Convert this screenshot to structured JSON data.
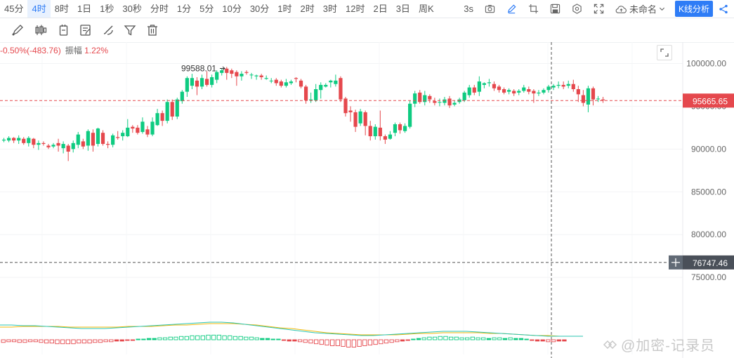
{
  "intervals": [
    {
      "label": "45分",
      "active": false
    },
    {
      "label": "4时",
      "active": true
    },
    {
      "label": "8时",
      "active": false
    },
    {
      "label": "1日",
      "active": false
    },
    {
      "label": "1秒",
      "active": false
    },
    {
      "label": "30秒",
      "active": false
    },
    {
      "label": "分时",
      "active": false
    },
    {
      "label": "1分",
      "active": false
    },
    {
      "label": "5分",
      "active": false
    },
    {
      "label": "10分",
      "active": false
    },
    {
      "label": "30分",
      "active": false
    },
    {
      "label": "1时",
      "active": false
    },
    {
      "label": "2时",
      "active": false
    },
    {
      "label": "3时",
      "active": false
    },
    {
      "label": "12时",
      "active": false
    },
    {
      "label": "2日",
      "active": false
    },
    {
      "label": "3日",
      "active": false
    },
    {
      "label": "周K",
      "active": false
    }
  ],
  "toolbar": {
    "refresh_label": "3s",
    "layout_name": "未命名",
    "analysis_button": "K线分析",
    "icons": [
      "camera-icon",
      "pen-icon",
      "crop-icon",
      "save-icon",
      "settings-icon",
      "fullscreen-icon",
      "cloud-icon",
      "chevron-down-icon",
      "share-icon"
    ]
  },
  "draw_tools": [
    "line-draw-icon",
    "candle-icon",
    "ruler-icon",
    "note-icon",
    "brush-icon",
    "filter-icon",
    "trash-icon"
  ],
  "legend": {
    "change": "-0.50%(-483.76)",
    "amplitude_label": "振幅",
    "amplitude_value": "1.22%"
  },
  "chart_data": {
    "type": "candlestick",
    "y_ticks": [
      "100000.00",
      "95000.00",
      "90000.00",
      "85000.00",
      "80000.00",
      "75000.00"
    ],
    "ylim": [
      70500,
      102500
    ],
    "current_price": "95665.65",
    "current_price_value": 95665.65,
    "crosshair_price": "76747.46",
    "crosshair_price_value": 76747.46,
    "high_marker": "99588.01",
    "high_marker_value": 99588.01,
    "colors": {
      "up": "#0ecb81",
      "down": "#e5484d",
      "grid": "#f2f3f5",
      "axis_text": "#666666",
      "yellow": "#f0b90b",
      "teal": "#2bc4b2"
    },
    "candles": [
      [
        91000,
        91100,
        91300,
        90800
      ],
      [
        91000,
        91300,
        91500,
        90800
      ],
      [
        91300,
        91000,
        91400,
        90700
      ],
      [
        91000,
        91300,
        91600,
        90600
      ],
      [
        91200,
        90700,
        91400,
        90500
      ],
      [
        90700,
        91300,
        91500,
        90300
      ],
      [
        91200,
        90500,
        91300,
        90100
      ],
      [
        90500,
        90700,
        91000,
        89900
      ],
      [
        90700,
        90600,
        90900,
        90400
      ],
      [
        90400,
        90200,
        90600,
        90000
      ],
      [
        90300,
        90500,
        90700,
        90100
      ],
      [
        90700,
        90400,
        91200,
        89700
      ],
      [
        90100,
        90600,
        90900,
        89500
      ],
      [
        90400,
        89700,
        90600,
        88600
      ],
      [
        90000,
        90700,
        91000,
        89600
      ],
      [
        90500,
        91700,
        92000,
        90100
      ],
      [
        90900,
        90300,
        91200,
        90000
      ],
      [
        90400,
        92100,
        92300,
        89800
      ],
      [
        91900,
        90400,
        92300,
        89700
      ],
      [
        90600,
        92400,
        92500,
        90300
      ],
      [
        91900,
        90600,
        92200,
        90400
      ],
      [
        90600,
        90500,
        90900,
        90100
      ],
      [
        90500,
        91600,
        91800,
        90200
      ],
      [
        91400,
        91300,
        92100,
        91100
      ],
      [
        91500,
        91900,
        92200,
        91000
      ],
      [
        91500,
        92500,
        93500,
        91400
      ],
      [
        92600,
        92400,
        92800,
        91900
      ],
      [
        92500,
        91900,
        92800,
        91700
      ],
      [
        92000,
        93200,
        93700,
        91800
      ],
      [
        92300,
        91700,
        92700,
        91400
      ],
      [
        91700,
        93200,
        93700,
        91500
      ],
      [
        92800,
        94200,
        94700,
        92700
      ],
      [
        94200,
        93300,
        94500,
        92700
      ],
      [
        93300,
        95500,
        95800,
        93000
      ],
      [
        95500,
        93800,
        95800,
        93400
      ],
      [
        93800,
        95800,
        96000,
        93500
      ],
      [
        95600,
        96700,
        96900,
        95300
      ],
      [
        96700,
        98300,
        98500,
        96100
      ],
      [
        97400,
        98300,
        98800,
        97000
      ],
      [
        98000,
        97300,
        98400,
        96300
      ],
      [
        97300,
        98300,
        98700,
        97000
      ],
      [
        98200,
        97500,
        99100,
        97300
      ],
      [
        97500,
        98400,
        98700,
        97200
      ],
      [
        98100,
        99000,
        99200,
        97700
      ],
      [
        98900,
        99200,
        99400,
        98600
      ],
      [
        99400,
        98900,
        99600,
        98100
      ],
      [
        99200,
        98800,
        99400,
        98300
      ],
      [
        99000,
        98500,
        99200,
        97400
      ],
      [
        98500,
        98800,
        99100,
        98000
      ],
      [
        99000,
        98900,
        99200,
        98700
      ],
      [
        98700,
        98700,
        98900,
        98200
      ],
      [
        98500,
        98600,
        98700,
        98100
      ],
      [
        98600,
        98400,
        98800,
        98100
      ],
      [
        98200,
        98300,
        98600,
        98100
      ],
      [
        98000,
        98000,
        98300,
        97700
      ],
      [
        98100,
        97700,
        98300,
        97400
      ],
      [
        97900,
        97400,
        98100,
        97200
      ],
      [
        97400,
        97800,
        98200,
        97200
      ],
      [
        97700,
        97900,
        98100,
        97500
      ],
      [
        98300,
        98200,
        98400,
        97800
      ],
      [
        98000,
        97300,
        98200,
        97100
      ],
      [
        97300,
        95700,
        97500,
        95300
      ],
      [
        95700,
        95800,
        96600,
        95400
      ],
      [
        95700,
        97000,
        97600,
        95500
      ],
      [
        96900,
        97500,
        97800,
        95900
      ],
      [
        97300,
        97500,
        97700,
        97200
      ],
      [
        97800,
        98000,
        98100,
        97200
      ],
      [
        97600,
        98000,
        98700,
        97300
      ],
      [
        98300,
        95800,
        98500,
        95500
      ],
      [
        95900,
        94200,
        96100,
        93800
      ],
      [
        94500,
        94300,
        95000,
        93200
      ],
      [
        94300,
        92600,
        94600,
        92000
      ],
      [
        93000,
        94400,
        94700,
        92700
      ],
      [
        94300,
        92700,
        94500,
        91600
      ],
      [
        92700,
        91500,
        93300,
        91000
      ],
      [
        91500,
        92600,
        92900,
        91100
      ],
      [
        92500,
        91500,
        94500,
        91000
      ],
      [
        91500,
        91100,
        91700,
        90600
      ],
      [
        91200,
        91700,
        92100,
        91100
      ],
      [
        91900,
        92900,
        93100,
        91500
      ],
      [
        92900,
        92200,
        93100,
        91800
      ],
      [
        92100,
        92700,
        93000,
        91900
      ],
      [
        92600,
        95300,
        95700,
        92400
      ],
      [
        95300,
        96500,
        96800,
        94900
      ],
      [
        96600,
        95500,
        96900,
        95300
      ],
      [
        95500,
        96300,
        96800,
        95100
      ],
      [
        96200,
        95800,
        96400,
        95400
      ],
      [
        95600,
        95400,
        96000,
        95100
      ],
      [
        95500,
        95500,
        95900,
        95000
      ],
      [
        95400,
        95800,
        96100,
        95100
      ],
      [
        95900,
        95100,
        96200,
        94800
      ],
      [
        95200,
        95400,
        95700,
        95000
      ],
      [
        95500,
        95800,
        96000,
        95300
      ],
      [
        95700,
        96600,
        96800,
        95500
      ],
      [
        96300,
        97200,
        97500,
        96000
      ],
      [
        97200,
        96600,
        97500,
        96300
      ],
      [
        96700,
        97900,
        98500,
        96200
      ],
      [
        97500,
        97700,
        97800,
        97100
      ],
      [
        97700,
        97800,
        98200,
        97300
      ],
      [
        97600,
        97100,
        97900,
        96800
      ],
      [
        97300,
        96900,
        97500,
        96600
      ],
      [
        97000,
        96600,
        97200,
        96400
      ],
      [
        96700,
        96900,
        97100,
        96400
      ],
      [
        96800,
        96500,
        97000,
        96200
      ],
      [
        96600,
        96800,
        97000,
        96300
      ],
      [
        96800,
        97200,
        97500,
        96600
      ],
      [
        97000,
        96700,
        97300,
        96400
      ],
      [
        96800,
        96500,
        97000,
        95400
      ],
      [
        96500,
        96600,
        96900,
        96200
      ],
      [
        96600,
        96900,
        97100,
        96400
      ],
      [
        96900,
        97300,
        97500,
        96600
      ],
      [
        97200,
        97400,
        97600,
        96900
      ],
      [
        97400,
        97500,
        97900,
        97100
      ],
      [
        97500,
        97300,
        97900,
        97000
      ],
      [
        97400,
        97600,
        98000,
        97100
      ],
      [
        97600,
        97000,
        98100,
        96700
      ],
      [
        97000,
        96400,
        97400,
        95500
      ],
      [
        96300,
        95400,
        96900,
        95000
      ],
      [
        95200,
        97100,
        97400,
        94300
      ],
      [
        97100,
        95800,
        97300,
        95100
      ],
      [
        95900,
        95900,
        96200,
        95500
      ],
      [
        95800,
        95700,
        96100,
        95400
      ]
    ],
    "macd": {
      "hist": [
        -4,
        -3,
        -3,
        -4,
        -4,
        -3,
        -3,
        -4,
        -5,
        -5,
        -6,
        -6,
        -6,
        -6,
        -5,
        -5,
        -5,
        -4,
        -4,
        -3,
        -3,
        -2,
        -2,
        -1,
        -1,
        1,
        1,
        2,
        2,
        3,
        3,
        4,
        4,
        5,
        5,
        6,
        6,
        6,
        7,
        7,
        7,
        6,
        6,
        5,
        5,
        4,
        4,
        3,
        2,
        2,
        1,
        1,
        -1,
        -2,
        -2,
        -3,
        -4,
        -5,
        -6,
        -7,
        -8,
        -9,
        -9,
        -10,
        -11,
        -11,
        -10,
        -9,
        -8,
        -7,
        -6,
        -5,
        -4,
        -3,
        -2,
        -1,
        1,
        2,
        3,
        4,
        4,
        5,
        5,
        4,
        4,
        3,
        3,
        4,
        3,
        3,
        2,
        3,
        3,
        2,
        3,
        2,
        2,
        1,
        -1,
        -2,
        -2,
        -3,
        -3,
        -2,
        -2
      ],
      "dif": [
        21,
        21,
        20,
        20,
        19,
        18,
        17,
        16,
        16,
        16,
        17,
        18,
        19,
        20,
        21,
        22,
        23,
        24,
        25,
        25,
        24,
        22,
        20,
        18,
        16,
        14,
        12,
        10,
        9,
        8,
        7,
        6,
        6,
        7,
        8,
        9,
        10,
        11,
        12,
        12,
        12,
        11,
        10,
        9,
        8,
        7,
        6,
        5,
        5,
        5,
        5
      ],
      "dea": [
        18,
        18,
        19,
        19,
        19,
        19,
        18,
        18,
        18,
        18,
        18,
        19,
        19,
        19,
        20,
        21,
        21,
        22,
        23,
        23,
        23,
        22,
        21,
        19,
        17,
        16,
        14,
        12,
        10,
        9,
        8,
        7,
        7,
        7,
        7,
        8,
        9,
        9,
        10,
        10,
        10,
        10,
        9,
        9,
        8,
        7,
        6,
        6,
        5,
        5,
        5
      ]
    }
  },
  "watermark": "@加密-记录员"
}
